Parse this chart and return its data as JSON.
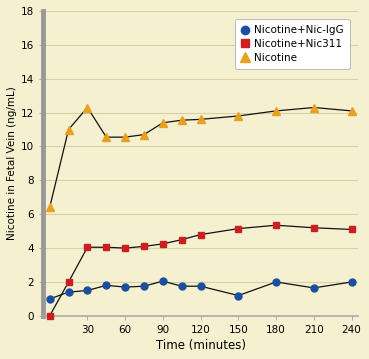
{
  "time": [
    0,
    15,
    30,
    45,
    60,
    75,
    90,
    105,
    120,
    150,
    180,
    210,
    240
  ],
  "nicotine_igg": [
    1.0,
    1.4,
    1.5,
    1.8,
    1.7,
    1.75,
    2.05,
    1.75,
    1.75,
    1.2,
    2.0,
    1.65,
    2.0
  ],
  "nicotine_nic311": [
    0.0,
    2.0,
    4.05,
    4.05,
    4.0,
    4.1,
    4.25,
    4.5,
    4.8,
    5.15,
    5.35,
    5.2,
    5.1
  ],
  "nicotine": [
    6.4,
    11.0,
    12.3,
    10.55,
    10.55,
    10.7,
    11.4,
    11.55,
    11.6,
    11.8,
    12.1,
    12.3,
    12.1
  ],
  "xlim": [
    -5,
    245
  ],
  "ylim": [
    0,
    18
  ],
  "xticks": [
    30,
    60,
    90,
    120,
    150,
    180,
    210,
    240
  ],
  "yticks": [
    0,
    2,
    4,
    6,
    8,
    10,
    12,
    14,
    16,
    18
  ],
  "xlabel": "Time (minutes)",
  "ylabel": "Nicotine in Fetal Vein (ng/mL)",
  "bg_color": "#f5f0d0",
  "legend_bg": "#ffffff",
  "line_color": "#111111",
  "igg_color": "#1a4fa0",
  "nic311_color": "#cc2020",
  "nicotine_color": "#e8a020",
  "grid_color": "#d8d0a8",
  "spine_color": "#aaaaaa"
}
